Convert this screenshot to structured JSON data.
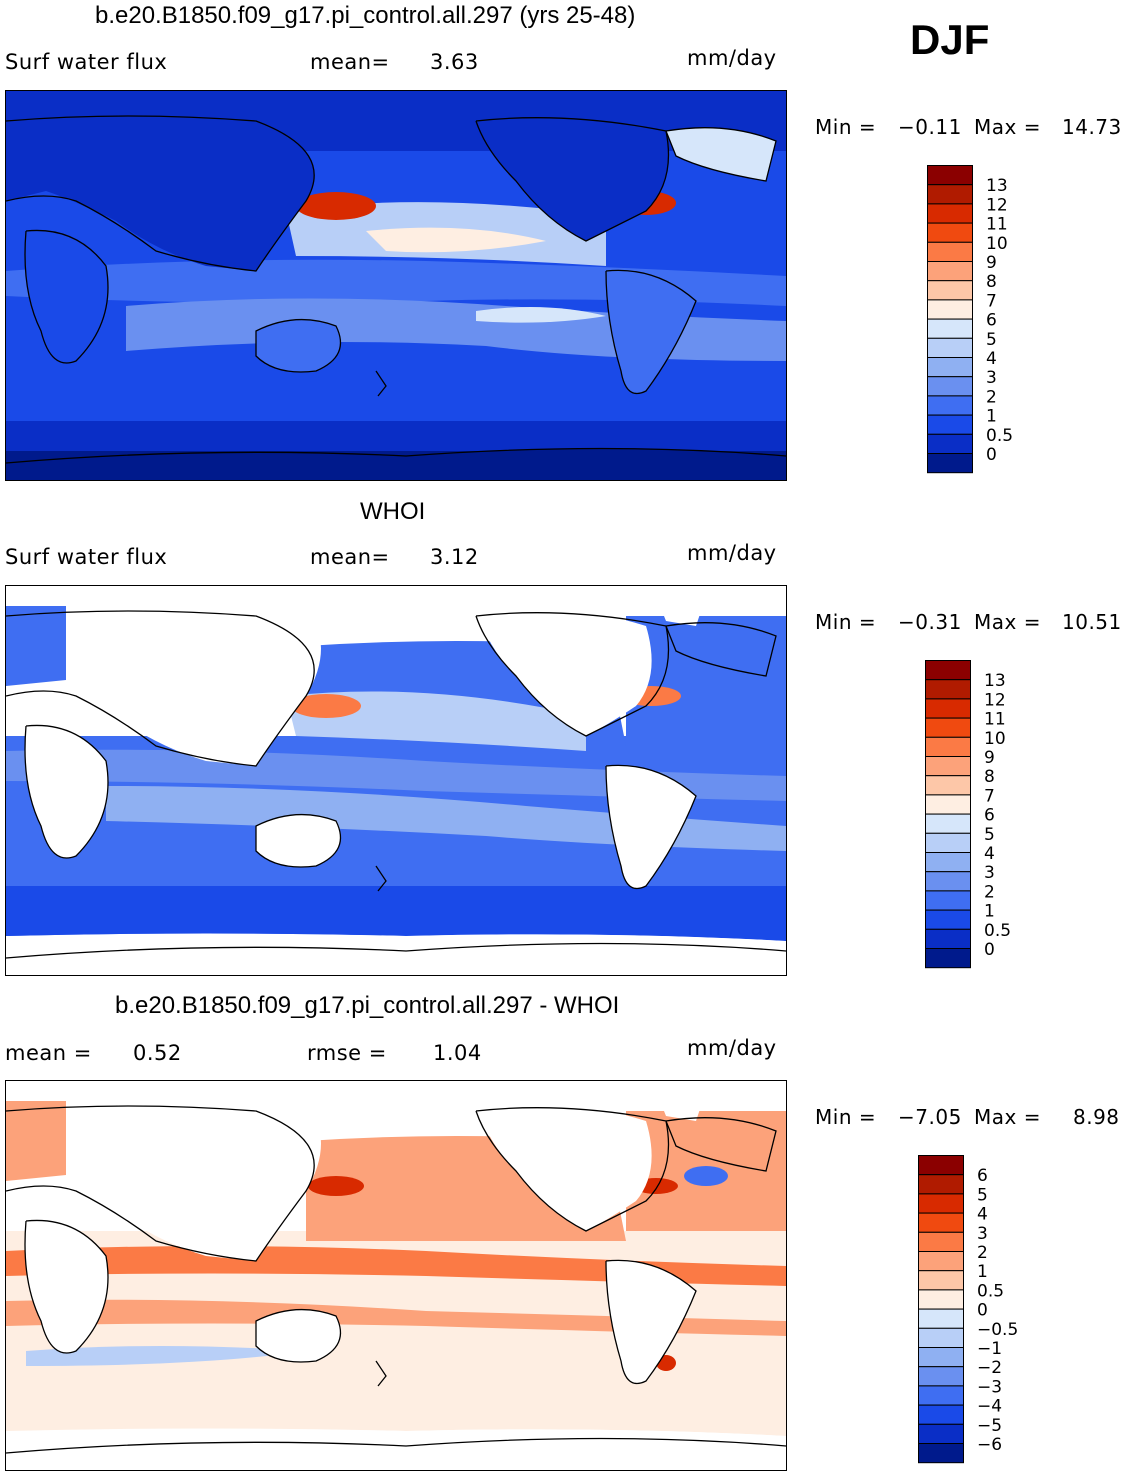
{
  "season": "DJF",
  "units": "mm/day",
  "colorbar_top": {
    "labels": [
      "13",
      "12",
      "11",
      "10",
      "9",
      "8",
      "7",
      "6",
      "5",
      "4",
      "3",
      "2",
      "1",
      "0.5",
      "0"
    ],
    "colors": [
      "#8b0000",
      "#b01b00",
      "#d82a00",
      "#f04a10",
      "#fb7a45",
      "#fca27a",
      "#fdc7a8",
      "#feeee2",
      "#d6e6fa",
      "#b8cff7",
      "#8fb0f2",
      "#6a90f0",
      "#3f6ef2",
      "#1a4ae8",
      "#0a2ec6",
      "#001a8c"
    ]
  },
  "colorbar_diff": {
    "labels": [
      "6",
      "5",
      "4",
      "3",
      "2",
      "1",
      "0.5",
      "0",
      "−0.5",
      "−1",
      "−2",
      "−3",
      "−4",
      "−5",
      "−6"
    ],
    "colors": [
      "#8b0000",
      "#b01b00",
      "#d82a00",
      "#f04a10",
      "#fb7a45",
      "#fca27a",
      "#fdc7a8",
      "#feeee2",
      "#d6e6fa",
      "#b8cff7",
      "#8fb0f2",
      "#6a90f0",
      "#3f6ef2",
      "#1a4ae8",
      "#0a2ec6",
      "#001a8c"
    ]
  },
  "panels": [
    {
      "title": "b.e20.B1850.f09_g17.pi_control.all.297 (yrs 25-48)",
      "left_label": "Surf  water  flux",
      "stat1_label": "mean=",
      "stat1_value": "3.63",
      "units": "mm/day",
      "min_label": "Min  =",
      "min_value": "−0.11",
      "max_label": "Max  =",
      "max_value": "14.73"
    },
    {
      "title": "WHOI",
      "left_label": "Surf  water  flux",
      "stat1_label": "mean=",
      "stat1_value": "3.12",
      "units": "mm/day",
      "min_label": "Min  =",
      "min_value": "−0.31",
      "max_label": "Max  =",
      "max_value": "10.51"
    },
    {
      "title": "b.e20.B1850.f09_g17.pi_control.all.297 - WHOI",
      "left_label": "mean  =",
      "left_value": "0.52",
      "stat1_label": "rmse  =",
      "stat1_value": "1.04",
      "units": "mm/day",
      "min_label": "Min  =",
      "min_value": "−7.05",
      "max_label": "Max  =",
      "max_value": "8.98"
    }
  ]
}
